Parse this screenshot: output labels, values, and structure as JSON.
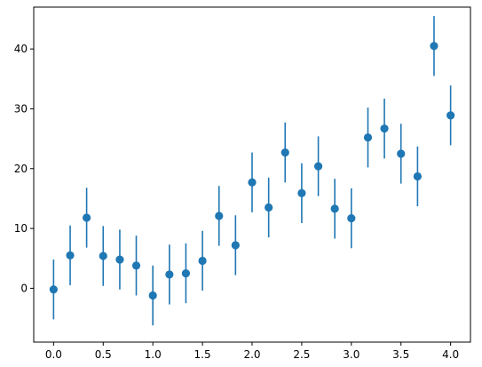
{
  "chart_data": {
    "type": "scatter",
    "title": "",
    "xlabel": "",
    "ylabel": "",
    "xlim": [
      -0.2,
      4.2
    ],
    "ylim": [
      -9,
      47
    ],
    "xticks": [
      0.0,
      0.5,
      1.0,
      1.5,
      2.0,
      2.5,
      3.0,
      3.5,
      4.0
    ],
    "xtick_labels": [
      "0.0",
      "0.5",
      "1.0",
      "1.5",
      "2.0",
      "2.5",
      "3.0",
      "3.5",
      "4.0"
    ],
    "yticks": [
      0,
      10,
      20,
      30,
      40
    ],
    "ytick_labels": [
      "0",
      "10",
      "20",
      "30",
      "40"
    ],
    "grid": false,
    "color": "#1f77b4",
    "series": [
      {
        "x": [
          0.0,
          0.167,
          0.333,
          0.5,
          0.667,
          0.833,
          1.0,
          1.167,
          1.333,
          1.5,
          1.667,
          1.833,
          2.0,
          2.167,
          2.333,
          2.5,
          2.667,
          2.833,
          3.0,
          3.167,
          3.333,
          3.5,
          3.667,
          3.833,
          4.0
        ],
        "y": [
          -0.2,
          5.5,
          11.8,
          5.4,
          4.8,
          3.8,
          -1.2,
          2.3,
          2.5,
          4.6,
          12.1,
          7.2,
          17.7,
          13.5,
          22.7,
          15.9,
          20.4,
          13.3,
          11.7,
          25.2,
          26.7,
          22.5,
          18.7,
          40.5,
          28.9
        ],
        "yerr": 5
      }
    ]
  }
}
